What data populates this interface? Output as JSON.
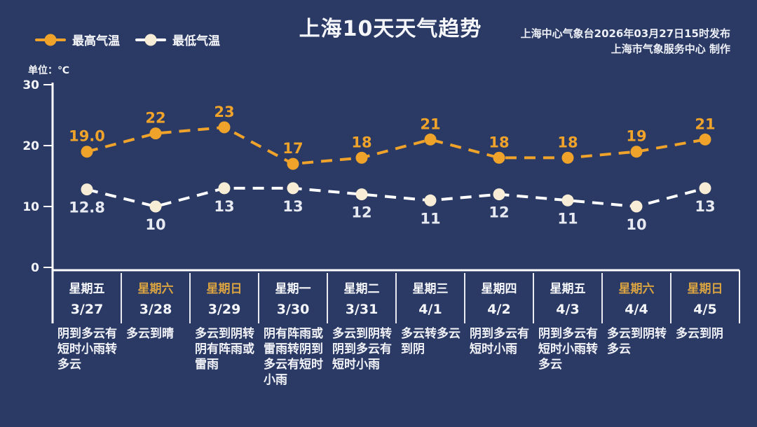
{
  "header": {
    "title": "上海10天天气趋势",
    "source_line1": "上海中心气象台2026年03月27日15时发布",
    "source_line2": "上海市气象服务中心  制作"
  },
  "legend": {
    "high_label": "最高气温",
    "low_label": "最低气温"
  },
  "unit_label": "单位：℃",
  "colors": {
    "background": "#2B3A64",
    "high_line": "#EFA32A",
    "high_marker": "#EFA32A",
    "high_value_label": "#EFA32A",
    "low_line": "#FFFFFF",
    "low_marker": "#F7ECD5",
    "low_value_label": "#E8EAF2",
    "axis": "#FFFFFF",
    "weekend_label": "#D9A341",
    "weekday_label": "#F5F6FA"
  },
  "chart_data": {
    "type": "line",
    "title": "上海10天天气趋势",
    "x": [
      "3/27",
      "3/28",
      "3/29",
      "3/30",
      "3/31",
      "4/1",
      "4/2",
      "4/3",
      "4/4",
      "4/5"
    ],
    "series": [
      {
        "name": "最高气温",
        "color": "#EFA32A",
        "marker_color": "#EFA32A",
        "label_color": "#EFA32A",
        "values": [
          19.0,
          22,
          23,
          17,
          18,
          21,
          18,
          18,
          19,
          21
        ],
        "point_labels": [
          "19.0",
          "22",
          "23",
          "17",
          "18",
          "21",
          "18",
          "18",
          "19",
          "21"
        ]
      },
      {
        "name": "最低气温",
        "color": "#FFFFFF",
        "marker_color": "#F7ECD5",
        "label_color": "#E8EAF2",
        "values": [
          12.8,
          10,
          13,
          13,
          12,
          11,
          12,
          11,
          10,
          13
        ],
        "point_labels": [
          "12.8",
          "10",
          "13",
          "13",
          "12",
          "11",
          "12",
          "11",
          "10",
          "13"
        ]
      }
    ],
    "ylim": [
      0,
      30
    ],
    "yticks": [
      0,
      10,
      20,
      30
    ],
    "ylabel": "单位：℃",
    "grid": false,
    "line_style": "dashed",
    "legend_position": "top-left"
  },
  "days": [
    {
      "weekday": "星期五",
      "date": "3/27",
      "weekend": false,
      "desc": "阴到多云有短时小雨转多云"
    },
    {
      "weekday": "星期六",
      "date": "3/28",
      "weekend": true,
      "desc": "多云到晴"
    },
    {
      "weekday": "星期日",
      "date": "3/29",
      "weekend": true,
      "desc": "多云到阴转阴有阵雨或雷雨"
    },
    {
      "weekday": "星期一",
      "date": "3/30",
      "weekend": false,
      "desc": "阴有阵雨或雷雨转阴到多云有短时小雨"
    },
    {
      "weekday": "星期二",
      "date": "3/31",
      "weekend": false,
      "desc": "多云到阴转阴到多云有短时小雨"
    },
    {
      "weekday": "星期三",
      "date": "4/1",
      "weekend": false,
      "desc": "多云转多云到阴"
    },
    {
      "weekday": "星期四",
      "date": "4/2",
      "weekend": false,
      "desc": "阴到多云有短时小雨"
    },
    {
      "weekday": "星期五",
      "date": "4/3",
      "weekend": false,
      "desc": "阴到多云有短时小雨转多云"
    },
    {
      "weekday": "星期六",
      "date": "4/4",
      "weekend": true,
      "desc": "多云到阴转多云"
    },
    {
      "weekday": "星期日",
      "date": "4/5",
      "weekend": true,
      "desc": "多云到阴"
    }
  ]
}
